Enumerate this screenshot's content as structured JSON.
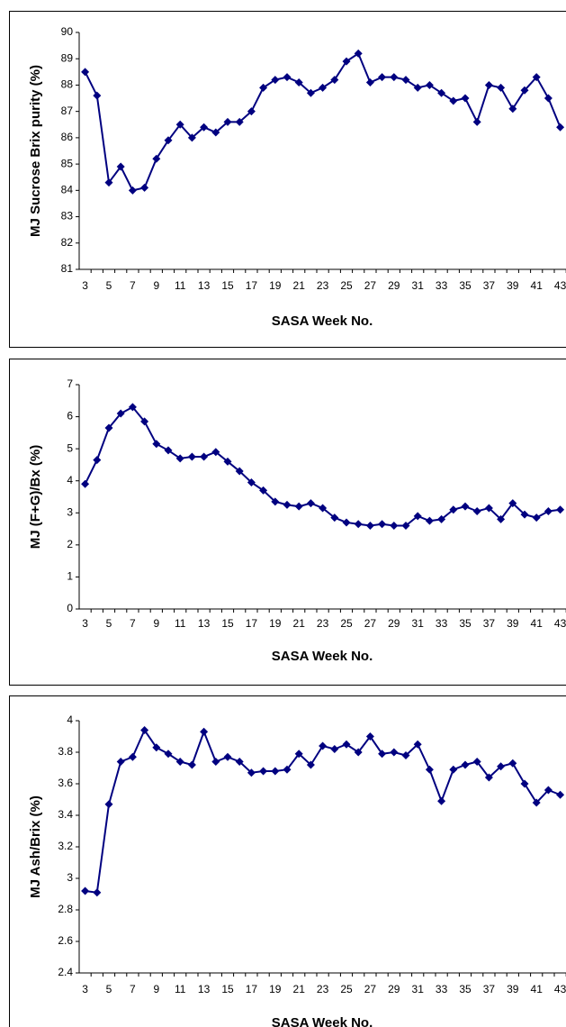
{
  "chart_data": [
    {
      "type": "line",
      "y_label": "MJ Sucrose Brix purity (%)",
      "x_label": "SASA Week No.",
      "categories": [
        "3",
        null,
        "5",
        null,
        "7",
        null,
        "9",
        null,
        "11",
        null,
        "13",
        null,
        "15",
        null,
        "17",
        null,
        "19",
        null,
        "21",
        null,
        "23",
        null,
        "25",
        null,
        "27",
        null,
        "29",
        null,
        "31",
        null,
        "33",
        null,
        "35",
        null,
        "37",
        null,
        "39",
        null,
        "41",
        null,
        "43"
      ],
      "series": [
        {
          "color": "#000080",
          "values": [
            88.5,
            87.6,
            84.3,
            84.9,
            84.0,
            84.1,
            85.2,
            85.9,
            86.5,
            86.0,
            86.4,
            86.2,
            86.6,
            86.6,
            87.0,
            87.9,
            88.2,
            88.3,
            88.1,
            87.7,
            87.9,
            88.2,
            88.9,
            89.2,
            88.1,
            88.3,
            88.3,
            88.2,
            87.9,
            88.0,
            87.7,
            87.4,
            87.5,
            86.6,
            88.0,
            87.9,
            87.1,
            87.8,
            88.3,
            87.5,
            86.4
          ]
        }
      ],
      "ylim": [
        81,
        90
      ],
      "yticks": [
        81,
        82,
        83,
        84,
        85,
        86,
        87,
        88,
        89,
        90
      ]
    },
    {
      "type": "line",
      "y_label": "MJ (F+G)/Bx (%)",
      "x_label": "SASA Week No.",
      "categories": [
        "3",
        null,
        "5",
        null,
        "7",
        null,
        "9",
        null,
        "11",
        null,
        "13",
        null,
        "15",
        null,
        "17",
        null,
        "19",
        null,
        "21",
        null,
        "23",
        null,
        "25",
        null,
        "27",
        null,
        "29",
        null,
        "31",
        null,
        "33",
        null,
        "35",
        null,
        "37",
        null,
        "39",
        null,
        "41",
        null,
        "43"
      ],
      "series": [
        {
          "color": "#000080",
          "values": [
            3.9,
            4.65,
            5.65,
            6.1,
            6.3,
            5.85,
            5.15,
            4.95,
            4.7,
            4.75,
            4.75,
            4.9,
            4.6,
            4.3,
            3.95,
            3.7,
            3.35,
            3.25,
            3.2,
            3.3,
            3.15,
            2.85,
            2.7,
            2.65,
            2.6,
            2.65,
            2.6,
            2.6,
            2.9,
            2.75,
            2.8,
            3.1,
            3.2,
            3.05,
            3.15,
            2.8,
            3.3,
            2.95,
            2.85,
            3.05,
            3.1
          ]
        }
      ],
      "ylim": [
        0,
        7
      ],
      "yticks": [
        0,
        1,
        2,
        3,
        4,
        5,
        6,
        7
      ]
    },
    {
      "type": "line",
      "y_label": "MJ Ash/Brix (%)",
      "x_label": "SASA Week No.",
      "categories": [
        "3",
        null,
        "5",
        null,
        "7",
        null,
        "9",
        null,
        "11",
        null,
        "13",
        null,
        "15",
        null,
        "17",
        null,
        "19",
        null,
        "21",
        null,
        "23",
        null,
        "25",
        null,
        "27",
        null,
        "29",
        null,
        "31",
        null,
        "33",
        null,
        "35",
        null,
        "37",
        null,
        "39",
        null,
        "41",
        null,
        "43"
      ],
      "series": [
        {
          "color": "#000080",
          "values": [
            2.92,
            2.91,
            3.47,
            3.74,
            3.77,
            3.94,
            3.83,
            3.79,
            3.74,
            3.72,
            3.93,
            3.74,
            3.77,
            3.74,
            3.67,
            3.68,
            3.68,
            3.69,
            3.79,
            3.72,
            3.84,
            3.82,
            3.85,
            3.8,
            3.9,
            3.79,
            3.8,
            3.78,
            3.85,
            3.69,
            3.49,
            3.69,
            3.72,
            3.74,
            3.64,
            3.71,
            3.73,
            3.6,
            3.48,
            3.56,
            3.53
          ]
        }
      ],
      "ylim": [
        2.4,
        4
      ],
      "yticks": [
        2.4,
        2.6,
        2.8,
        3,
        3.2,
        3.4,
        3.6,
        3.8,
        4
      ]
    }
  ]
}
